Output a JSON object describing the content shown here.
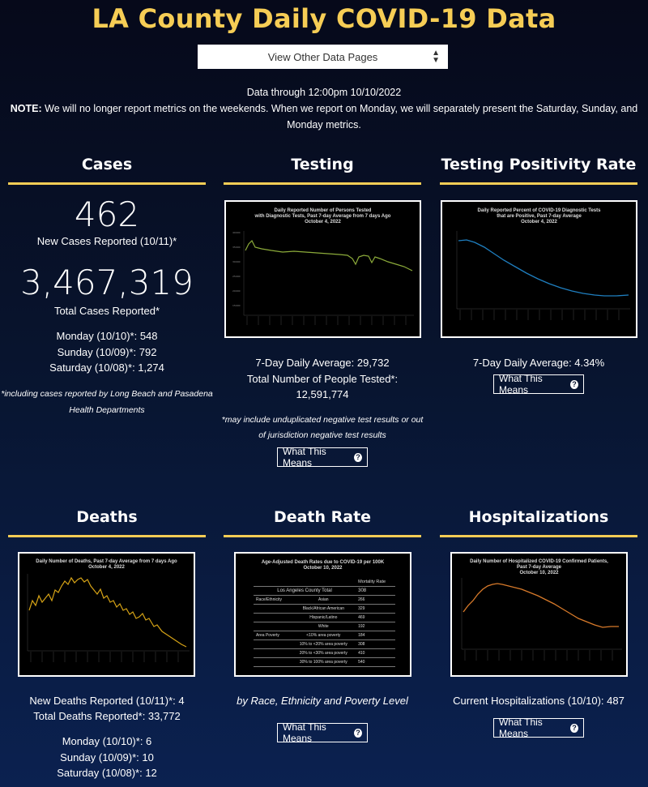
{
  "header": {
    "title": "LA County Daily COVID-19 Data",
    "dropdown_label": "View Other Data Pages",
    "data_through": "Data through 12:00pm 10/10/2022",
    "note_label": "NOTE:",
    "note_text": " We will no longer report metrics on the weekends. When we report on Monday, we will separately present the Saturday, Sunday, and Monday metrics."
  },
  "cases": {
    "heading": "Cases",
    "new_value": "462",
    "new_label": "New Cases Reported (10/11)*",
    "total_value": "3,467,319",
    "total_label": "Total Cases Reported*",
    "monday": "Monday (10/10)*: 548",
    "sunday": "Sunday (10/09)*: 792",
    "saturday": "Saturday (10/08)*: 1,274",
    "footnote_1": "*including cases reported by Long Beach and Pasadena",
    "footnote_2": "Health Departments"
  },
  "testing": {
    "heading": "Testing",
    "chart_title_1": "Daily Reported Number of Persons Tested",
    "chart_title_2": "with Diagnostic Tests, Past 7-day Average from 7 days Ago",
    "chart_title_3": "October 4, 2022",
    "avg": "7-Day Daily Average: 29,732",
    "total_label": "Total Number of People Tested*:",
    "total_value": "12,591,774",
    "footnote_1": "*may include unduplicated negative test results or out",
    "footnote_2": "of jurisdiction negative test results",
    "button": "What This Means"
  },
  "positivity": {
    "heading": "Testing Positivity Rate",
    "chart_title_1": "Daily Reported Percent of COVID-19 Diagnostic Tests",
    "chart_title_2": "that are Positive, Past 7-day Average",
    "chart_title_3": "October 4, 2022",
    "avg": "7-Day Daily Average: 4.34%",
    "button": "What This Means"
  },
  "deaths": {
    "heading": "Deaths",
    "chart_title_1": "Daily Number of Deaths, Past 7-day Average from 7 days Ago",
    "chart_title_2": "October 4, 2022",
    "new": "New Deaths Reported (10/11)*: 4",
    "total": "Total Deaths Reported*: 33,772",
    "monday": "Monday (10/10)*: 6",
    "sunday": "Sunday (10/09)*: 10",
    "saturday": "Saturday (10/08)*: 12"
  },
  "death_rate": {
    "heading": "Death Rate",
    "chart_title_1": "Age-Adjusted Death Rates due to COVID-19 per 100K",
    "chart_title_2": "October 10, 2022",
    "col_header": "Mortality Rate",
    "total_label": "Los Angeles County Total",
    "total_value": "308",
    "rows": [
      {
        "group": "Race/Ethnicity",
        "label": "Asian",
        "value": "266"
      },
      {
        "group": "",
        "label": "Black/African American",
        "value": "329"
      },
      {
        "group": "",
        "label": "Hispanic/Latino",
        "value": "469"
      },
      {
        "group": "",
        "label": "White",
        "value": "192"
      },
      {
        "group": "Area Poverty",
        "label": "<10% area poverty",
        "value": "184"
      },
      {
        "group": "",
        "label": "10% to <20% area poverty",
        "value": "308"
      },
      {
        "group": "",
        "label": "20% to <30% area poverty",
        "value": "410"
      },
      {
        "group": "",
        "label": "30% to 100% area poverty",
        "value": "540"
      }
    ],
    "caption": "by Race, Ethnicity and Poverty Level",
    "button": "What This Means"
  },
  "hospitalizations": {
    "heading": "Hospitalizations",
    "chart_title_1": "Daily Number of Hospitalized COVID-19 Confirmed Patients,",
    "chart_title_2": "Past 7-day Average",
    "chart_title_3": "October 10, 2022",
    "current": "Current Hospitalizations (10/10): 487",
    "button": "What This Means"
  },
  "colors": {
    "accent": "#f6cd55",
    "testing_line": "#8cab3a",
    "positivity_line": "#1f7fc0",
    "deaths_line": "#d6a316",
    "hosp_line": "#d87a2a"
  }
}
